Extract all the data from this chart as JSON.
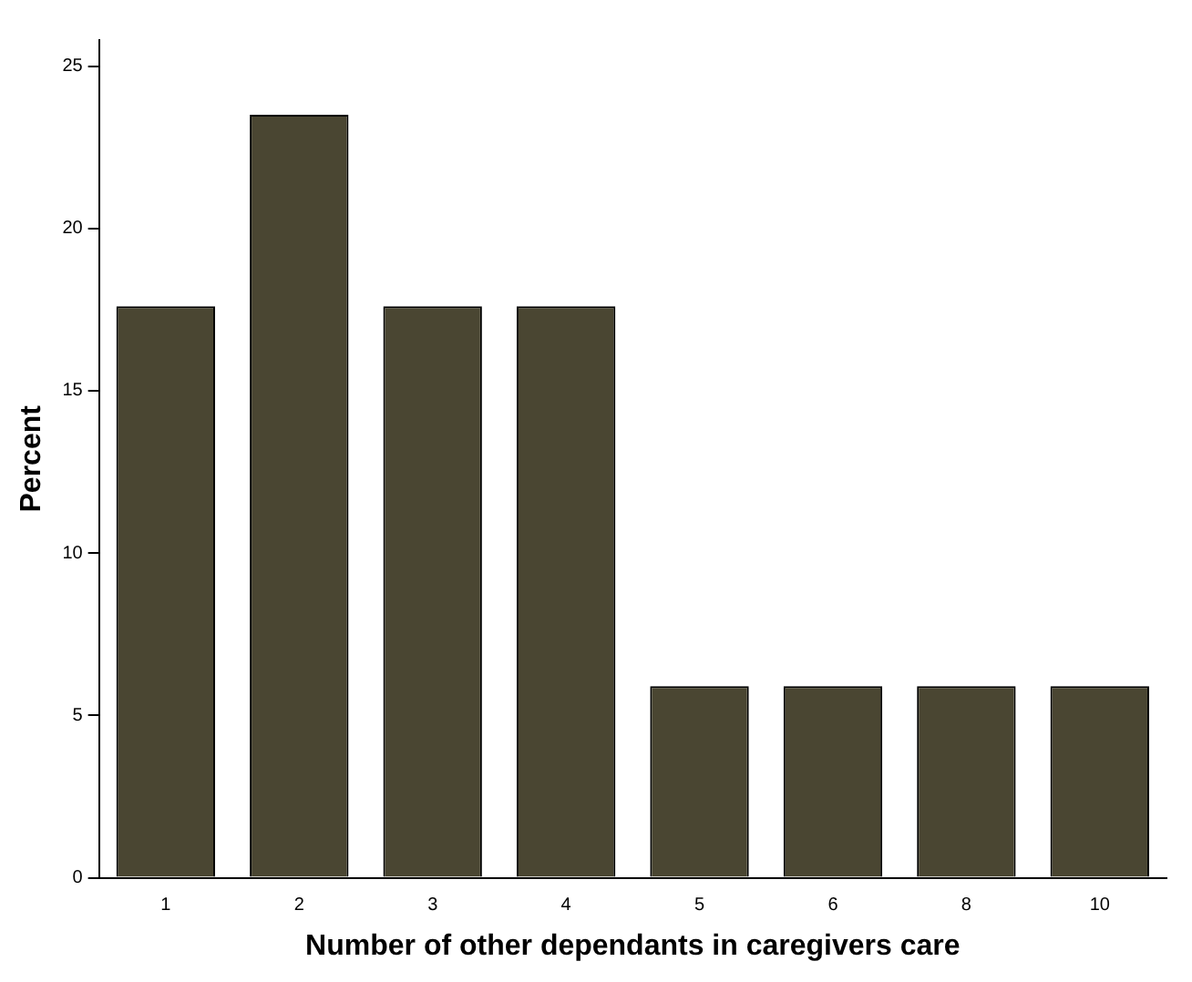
{
  "chart_data": {
    "type": "bar",
    "xlabel": "Number of other dependants in caregivers care",
    "ylabel": "Percent",
    "categories": [
      "1",
      "2",
      "3",
      "4",
      "5",
      "6",
      "8",
      "10"
    ],
    "values": [
      17.6,
      23.5,
      17.6,
      17.6,
      5.9,
      5.9,
      5.9,
      5.9
    ],
    "color": "#4a4632",
    "ylim": [
      0,
      25.8
    ],
    "yticks": [
      0,
      5,
      10,
      15,
      20,
      25
    ],
    "grid": false,
    "legend": false
  }
}
